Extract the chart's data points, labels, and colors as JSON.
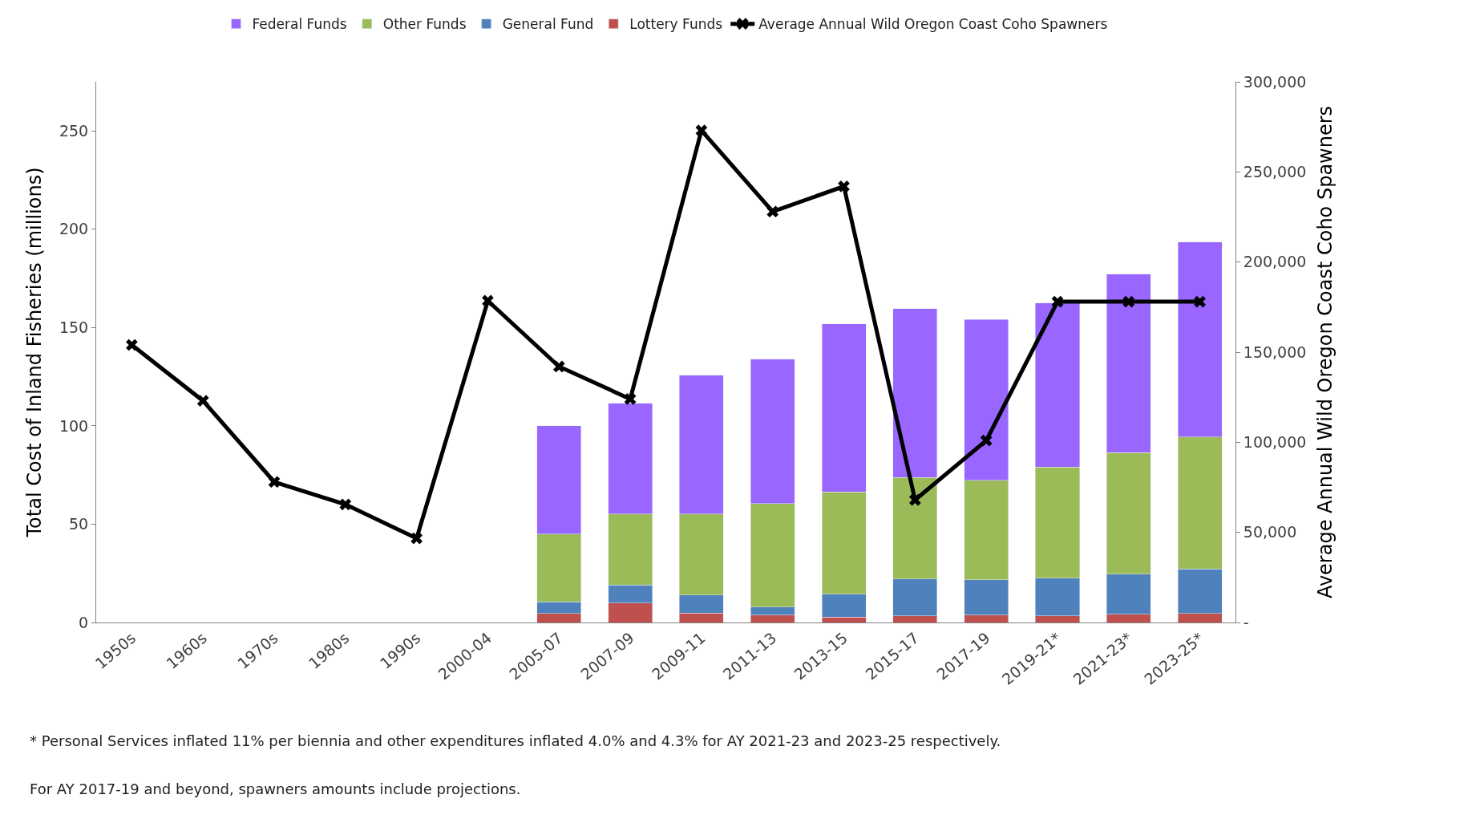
{
  "chart_data": {
    "type": "bar",
    "stacked": true,
    "categories": [
      "1950s",
      "1960s",
      "1970s",
      "1980s",
      "1990s",
      "2000-04",
      "2005-07",
      "2007-09",
      "2009-11",
      "2011-13",
      "2013-15",
      "2015-17",
      "2017-19",
      "2019-21*",
      "2021-23*",
      "2023-25*"
    ],
    "ylabel": "Total Cost of Inland Fisheries (millions)",
    "y2label": "Average Annual Wild Oregon Coast Coho Spawners",
    "ylim": [
      0,
      275
    ],
    "yticks": [
      0,
      50,
      100,
      150,
      200,
      250
    ],
    "y2lim": [
      0,
      300000
    ],
    "y2ticks": [
      {
        "value": 0,
        "label": "-"
      },
      {
        "value": 50000,
        "label": "50,000"
      },
      {
        "value": 100000,
        "label": "100,000"
      },
      {
        "value": 150000,
        "label": "150,000"
      },
      {
        "value": 200000,
        "label": "200,000"
      },
      {
        "value": 250000,
        "label": "250,000"
      },
      {
        "value": 300000,
        "label": "300,000"
      }
    ],
    "legend": "top",
    "series": [
      {
        "name": "Lottery Funds",
        "color": "#c0504d",
        "values": [
          null,
          null,
          null,
          null,
          null,
          null,
          4.6,
          9.8,
          4.8,
          3.7,
          2.8,
          3.3,
          3.7,
          3.3,
          4.2,
          4.6
        ]
      },
      {
        "name": "General Fund",
        "color": "#4f81bd",
        "values": [
          null,
          null,
          null,
          null,
          null,
          null,
          6,
          9.2,
          9.2,
          4.2,
          11.6,
          18.8,
          18,
          19.3,
          20.3,
          22.6
        ]
      },
      {
        "name": "Other Funds",
        "color": "#9bbb59",
        "values": [
          null,
          null,
          null,
          null,
          null,
          null,
          34.4,
          36.2,
          41.2,
          52.5,
          52,
          51.7,
          50.6,
          56.5,
          62,
          67.2
        ]
      },
      {
        "name": "Federal Funds",
        "color": "#9966ff",
        "values": [
          null,
          null,
          null,
          null,
          null,
          null,
          55,
          56.3,
          70.5,
          73.6,
          85.4,
          85.9,
          81.9,
          83.4,
          90.7,
          99
        ]
      },
      {
        "name": "Average Annual Wild Oregon Coast Coho Spawners",
        "type": "line",
        "axis": "y2",
        "color": "#000000",
        "marker": "cross",
        "values": [
          154000,
          123000,
          78000,
          65500,
          46700,
          178500,
          142000,
          124000,
          273000,
          228000,
          242000,
          68000,
          101000,
          178000,
          178000,
          178000
        ]
      }
    ],
    "annotations": [
      "* Personal Services inflated 11% per biennia and other expenditures inflated 4.0% and 4.3% for AY 2021-23 and 2023-25 respectively.",
      "For AY 2017-19 and beyond, spawners amounts include projections."
    ]
  }
}
